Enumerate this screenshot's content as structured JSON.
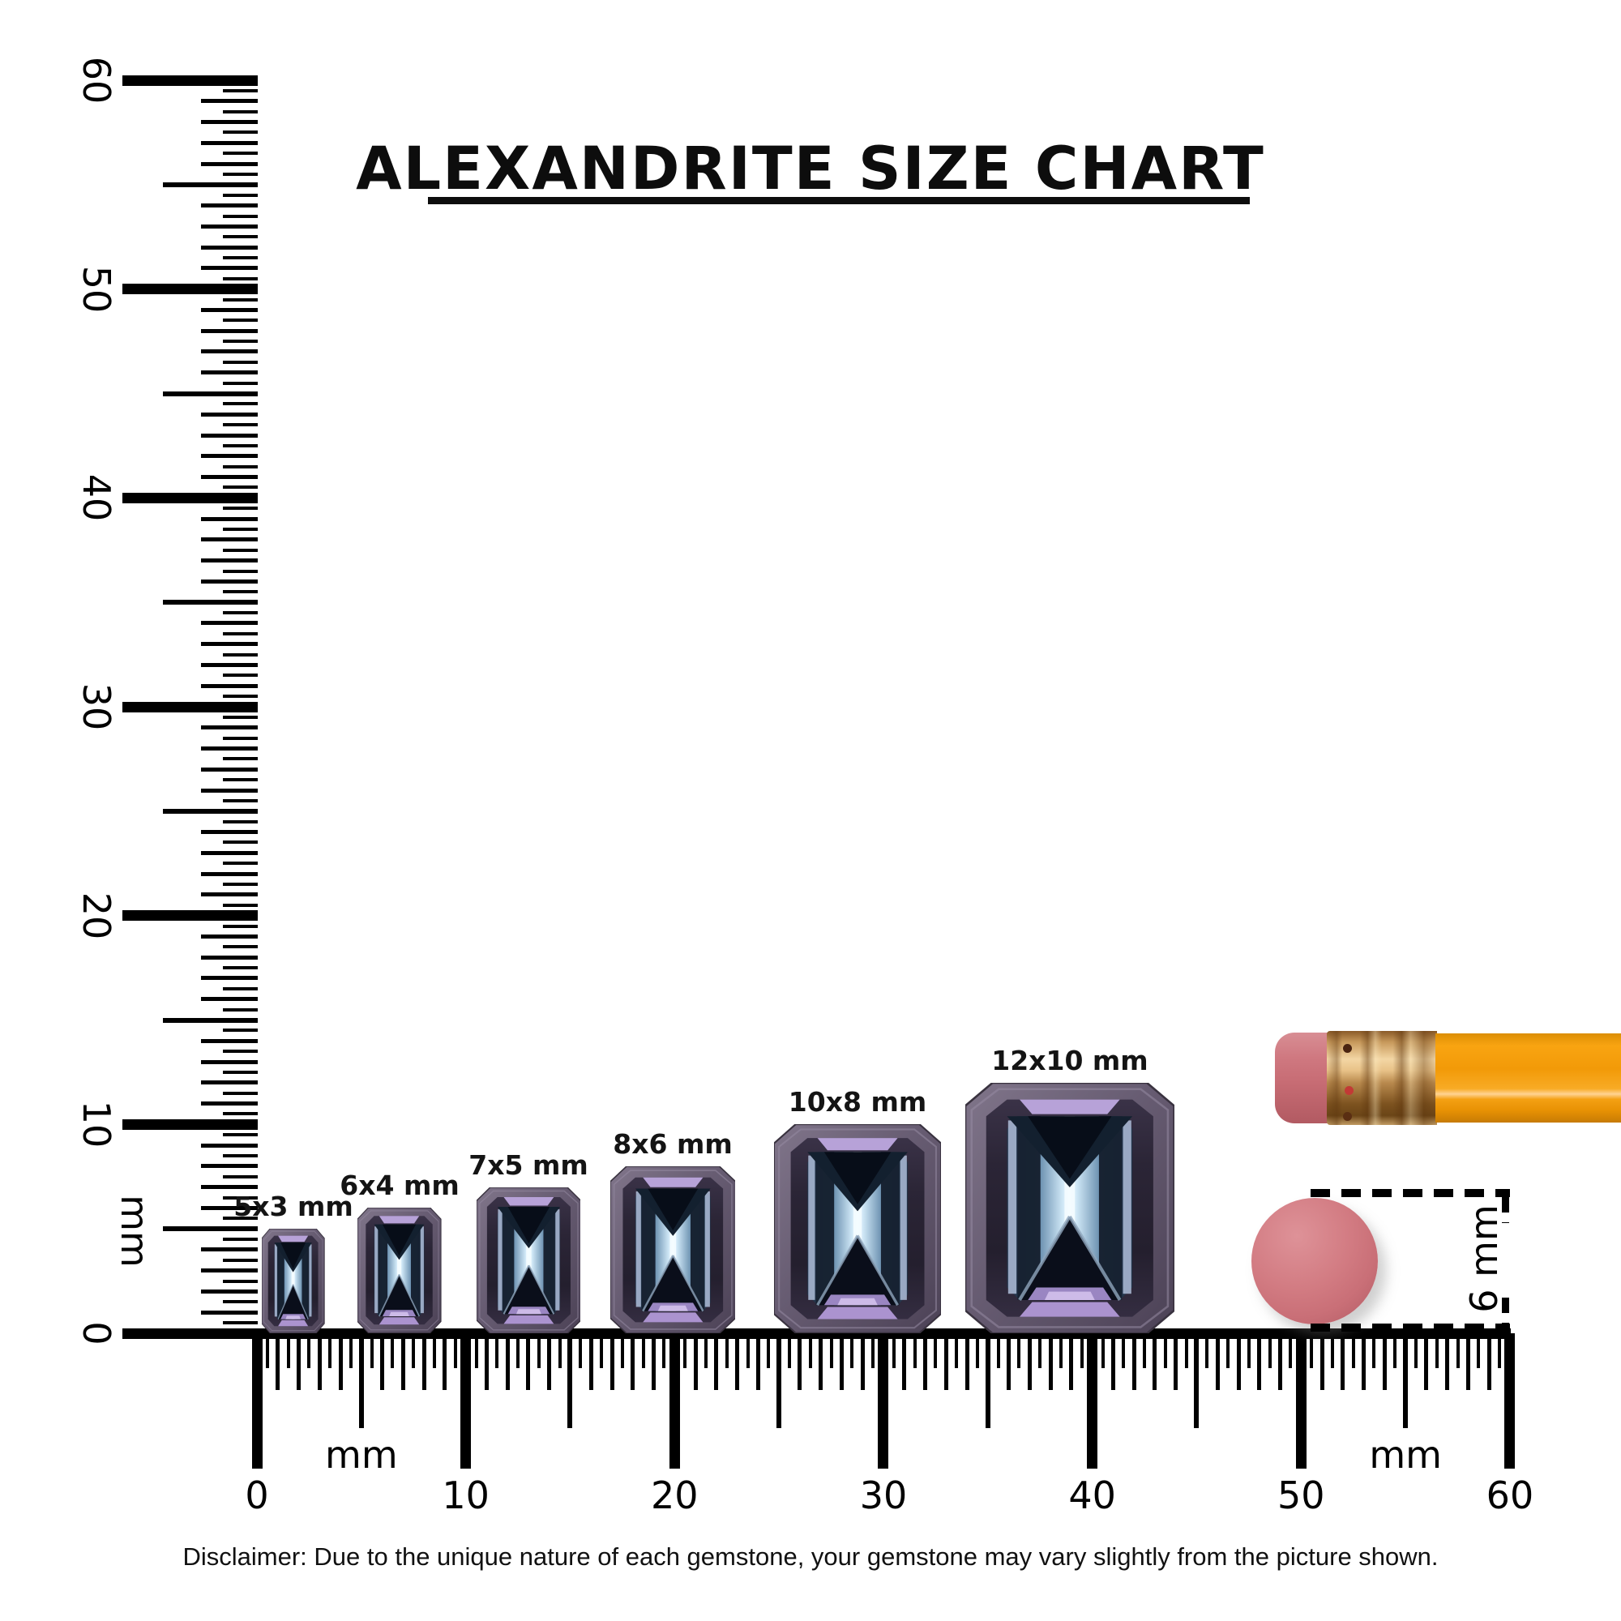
{
  "title": "ALEXANDRITE SIZE CHART",
  "rulers": {
    "unit": "mm",
    "vertical": {
      "min_mm": 0,
      "max_mm": 60,
      "tick_labels": [
        "0",
        "10",
        "20",
        "30",
        "40",
        "50",
        "60"
      ],
      "unit_label": "mm"
    },
    "horizontal": {
      "min_mm": 0,
      "max_mm": 60,
      "tick_labels": [
        "0",
        "10",
        "20",
        "30",
        "40",
        "50",
        "60"
      ],
      "unit_label_left": "mm",
      "unit_label_right": "mm"
    }
  },
  "gems": [
    {
      "label": "5x3 mm",
      "length_mm": 5,
      "width_mm": 3
    },
    {
      "label": "6x4 mm",
      "length_mm": 6,
      "width_mm": 4
    },
    {
      "label": "7x5 mm",
      "length_mm": 7,
      "width_mm": 5
    },
    {
      "label": "8x6 mm",
      "length_mm": 8,
      "width_mm": 6
    },
    {
      "label": "10x8 mm",
      "length_mm": 10,
      "width_mm": 8
    },
    {
      "label": "12x10 mm",
      "length_mm": 12,
      "width_mm": 10
    }
  ],
  "pencil_annotation": {
    "label": "6 mm",
    "diameter_mm": 6
  },
  "disclaimer": "Disclaimer: Due to the unique nature of each gemstone, your gemstone may vary slightly from the picture shown.",
  "colors": {
    "ink": "#000000",
    "gem_rim": "#675c72",
    "gem_dark": "#0a0e1a",
    "gem_light_column": "#cfe7f6",
    "gem_lavender": "#b7a2d8",
    "eraser_pink": "#cc7077",
    "ferrule_gold": "#e8c288",
    "pencil_orange": "#f29a08"
  }
}
